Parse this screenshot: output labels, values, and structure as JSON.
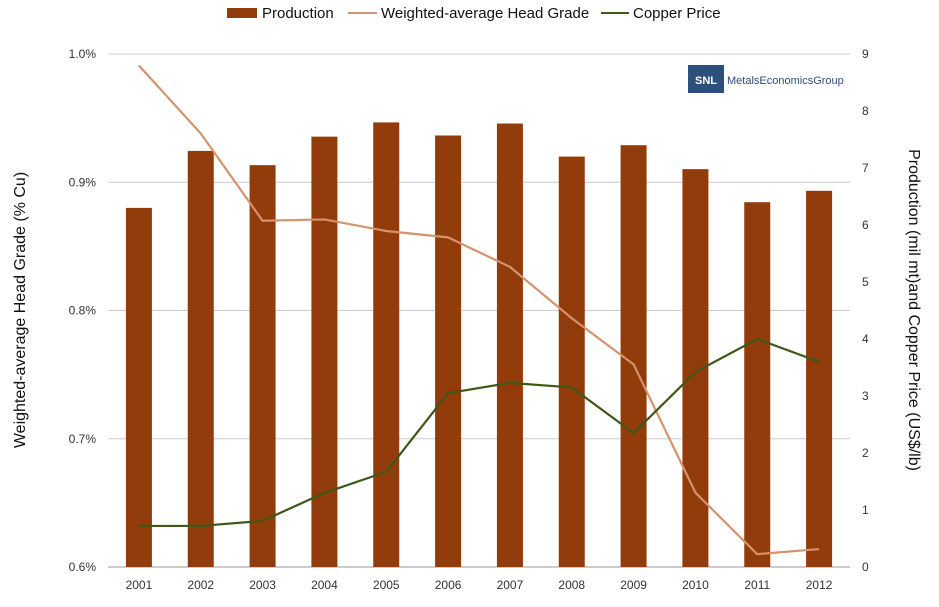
{
  "chart_data": {
    "type": "bar",
    "categories": [
      "2001",
      "2002",
      "2003",
      "2004",
      "2005",
      "2006",
      "2007",
      "2008",
      "2009",
      "2010",
      "2011",
      "2012"
    ],
    "series": [
      {
        "name": "Production",
        "kind": "bar",
        "axis": "right",
        "color": "#923b0b",
        "values": [
          6.3,
          7.3,
          7.05,
          7.55,
          7.8,
          7.57,
          7.78,
          7.2,
          7.4,
          6.98,
          6.4,
          6.6
        ]
      },
      {
        "name": "Weighted-average Head Grade",
        "kind": "line",
        "axis": "left",
        "color": "#d4936c",
        "values": [
          0.991,
          0.938,
          0.87,
          0.871,
          0.862,
          0.857,
          0.834,
          0.794,
          0.758,
          0.658,
          0.61,
          0.614
        ]
      },
      {
        "name": "Copper Price",
        "kind": "line",
        "axis": "right",
        "color": "#3f5718",
        "values": [
          0.72,
          0.72,
          0.81,
          1.3,
          1.67,
          3.05,
          3.23,
          3.15,
          2.35,
          3.42,
          4.0,
          3.6
        ]
      }
    ],
    "y_left": {
      "label": "Weighted-average Head Grade (% Cu)",
      "ticks": [
        "0.6%",
        "0.7%",
        "0.8%",
        "0.9%",
        "1.0%"
      ],
      "range": [
        0.6,
        1.0
      ]
    },
    "y_right": {
      "label": "Production (mil mt)and Copper Price (US$/lb)",
      "ticks": [
        "0",
        "1",
        "2",
        "3",
        "4",
        "5",
        "6",
        "7",
        "8",
        "9"
      ],
      "range": [
        0,
        9
      ]
    },
    "grid": true,
    "legend_position": "top"
  },
  "logo": {
    "mark": "SNL",
    "text": "MetalsEconomicsGroup"
  }
}
